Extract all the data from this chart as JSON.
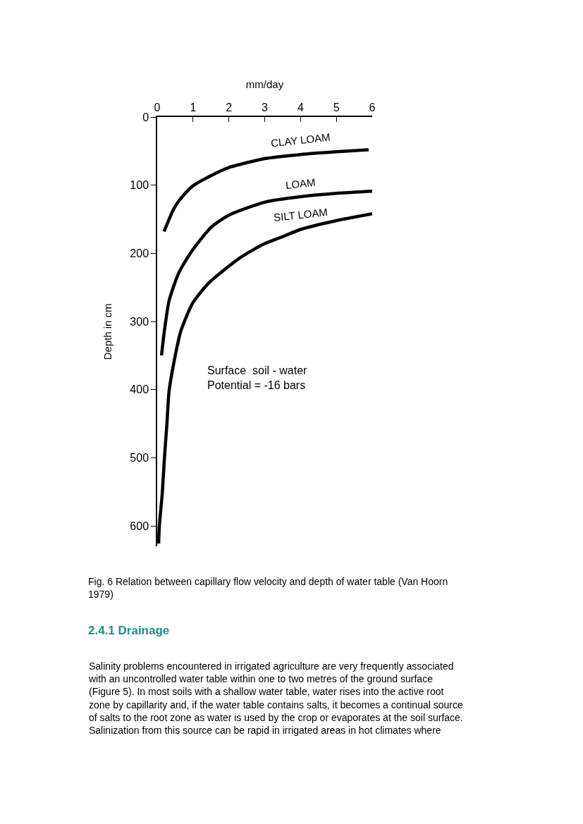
{
  "chart_data": {
    "type": "line",
    "xlabel": "mm/day",
    "ylabel": "Depth in cm",
    "xlim": [
      0,
      6
    ],
    "xticks": [
      0,
      1,
      2,
      3,
      4,
      5,
      6
    ],
    "ylim": [
      630,
      0
    ],
    "yticks": [
      0,
      100,
      200,
      300,
      400,
      500,
      600
    ],
    "legend": false,
    "marker": "none",
    "line_style": "solid",
    "series": [
      {
        "name": "CLAY LOAM",
        "color": "#000000",
        "x": [
          0.19,
          0.47,
          0.73,
          1,
          1.5,
          2,
          2.5,
          3,
          4,
          5,
          5.9
        ],
        "values": [
          168,
          134,
          115,
          101,
          86,
          74,
          67,
          61,
          55,
          51,
          48
        ]
      },
      {
        "name": "LOAM",
        "color": "#000000",
        "x": [
          0.12,
          0.2,
          0.33,
          0.6,
          0.95,
          1.5,
          2,
          3,
          4,
          5,
          6
        ],
        "values": [
          350,
          314,
          270,
          229,
          198,
          162,
          144,
          125,
          117,
          112,
          109
        ]
      },
      {
        "name": "SILT LOAM",
        "color": "#000000",
        "x": [
          0.04,
          0.06,
          0.14,
          0.2,
          0.27,
          0.33,
          0.47,
          0.66,
          0.99,
          1.45,
          2.3,
          2.95,
          3.48,
          4,
          5,
          6
        ],
        "values": [
          626,
          600,
          553,
          502,
          451,
          403,
          359,
          314,
          273,
          243,
          207,
          187,
          176,
          165,
          152,
          142
        ]
      }
    ],
    "annotations": [
      "Surface  soil - water\nPotential = -16 bars",
      "Fig. 6 Relation between capillary flow velocity and depth of water table (Van Hoorn\n1979)",
      "2.4.1 Drainage",
      "Salinity problems encountered in irrigated agriculture are very frequently associated\nwith an uncontrolled water table within one to two metres of the ground surface\n(Figure 5). In most soils with a shallow water table, water rises into the active root\nzone by capillarity and, if the water table contains salts, it becomes a continual source\nof salts to the root zone as water is used by the crop or evaporates at the soil surface.\nSalinization from this source can be rapid in irrigated areas in hot climates where"
    ]
  }
}
